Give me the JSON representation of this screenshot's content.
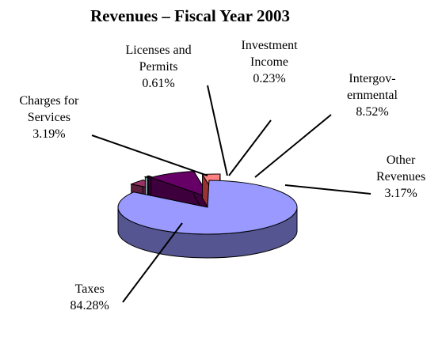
{
  "chart_data": {
    "type": "pie",
    "title": "Revenues – Fiscal Year 2003",
    "slices": [
      {
        "name_lines": [
          "Taxes"
        ],
        "value": 84.28,
        "value_label": "84.28%",
        "color": "#9999FF",
        "side": "#555592"
      },
      {
        "name_lines": [
          "Charges for",
          "Services"
        ],
        "value": 3.19,
        "value_label": "3.19%",
        "color": "#993366",
        "side": "#5c1f3d"
      },
      {
        "name_lines": [
          "Licenses and",
          "Permits"
        ],
        "value": 0.61,
        "value_label": "0.61%",
        "color": "#CCFFFF",
        "side": "#7a9999"
      },
      {
        "name_lines": [
          "Investment",
          "Income"
        ],
        "value": 0.23,
        "value_label": "0.23%",
        "color": "#660066",
        "side": "#3d003d"
      },
      {
        "name_lines": [
          "Intergov-",
          "ernmental"
        ],
        "value": 8.52,
        "value_label": "8.52%",
        "color": "#660066",
        "side": "#3d003d"
      },
      {
        "name_lines": [
          "Other",
          "Revenues"
        ],
        "value": 3.17,
        "value_label": "3.17%",
        "color": "#FF8080",
        "side": "#993333"
      }
    ]
  }
}
